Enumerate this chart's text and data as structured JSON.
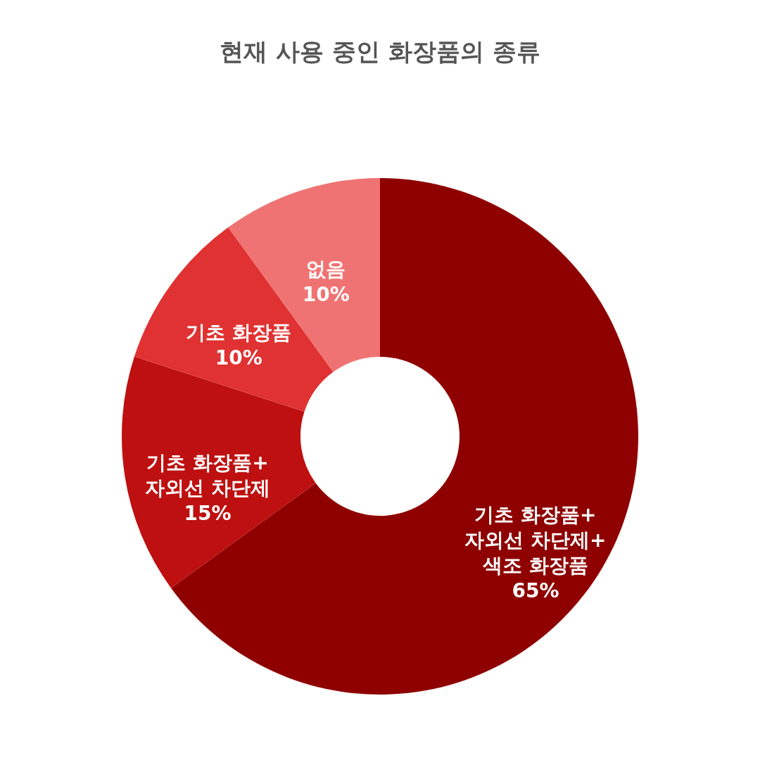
{
  "chart_data": {
    "type": "donut",
    "title": "현재 사용 중인 화장품의 종류",
    "categories": [
      "기초 화장품+자외선 차단제+색조 화장품",
      "기초 화장품+자외선 차단제",
      "기초 화장품",
      "없음"
    ],
    "values": [
      65,
      15,
      10,
      10
    ],
    "value_labels": [
      "65%",
      "15%",
      "10%",
      "10%"
    ],
    "colors": [
      "#8f0000",
      "#be1010",
      "#e03232",
      "#f07373"
    ]
  }
}
